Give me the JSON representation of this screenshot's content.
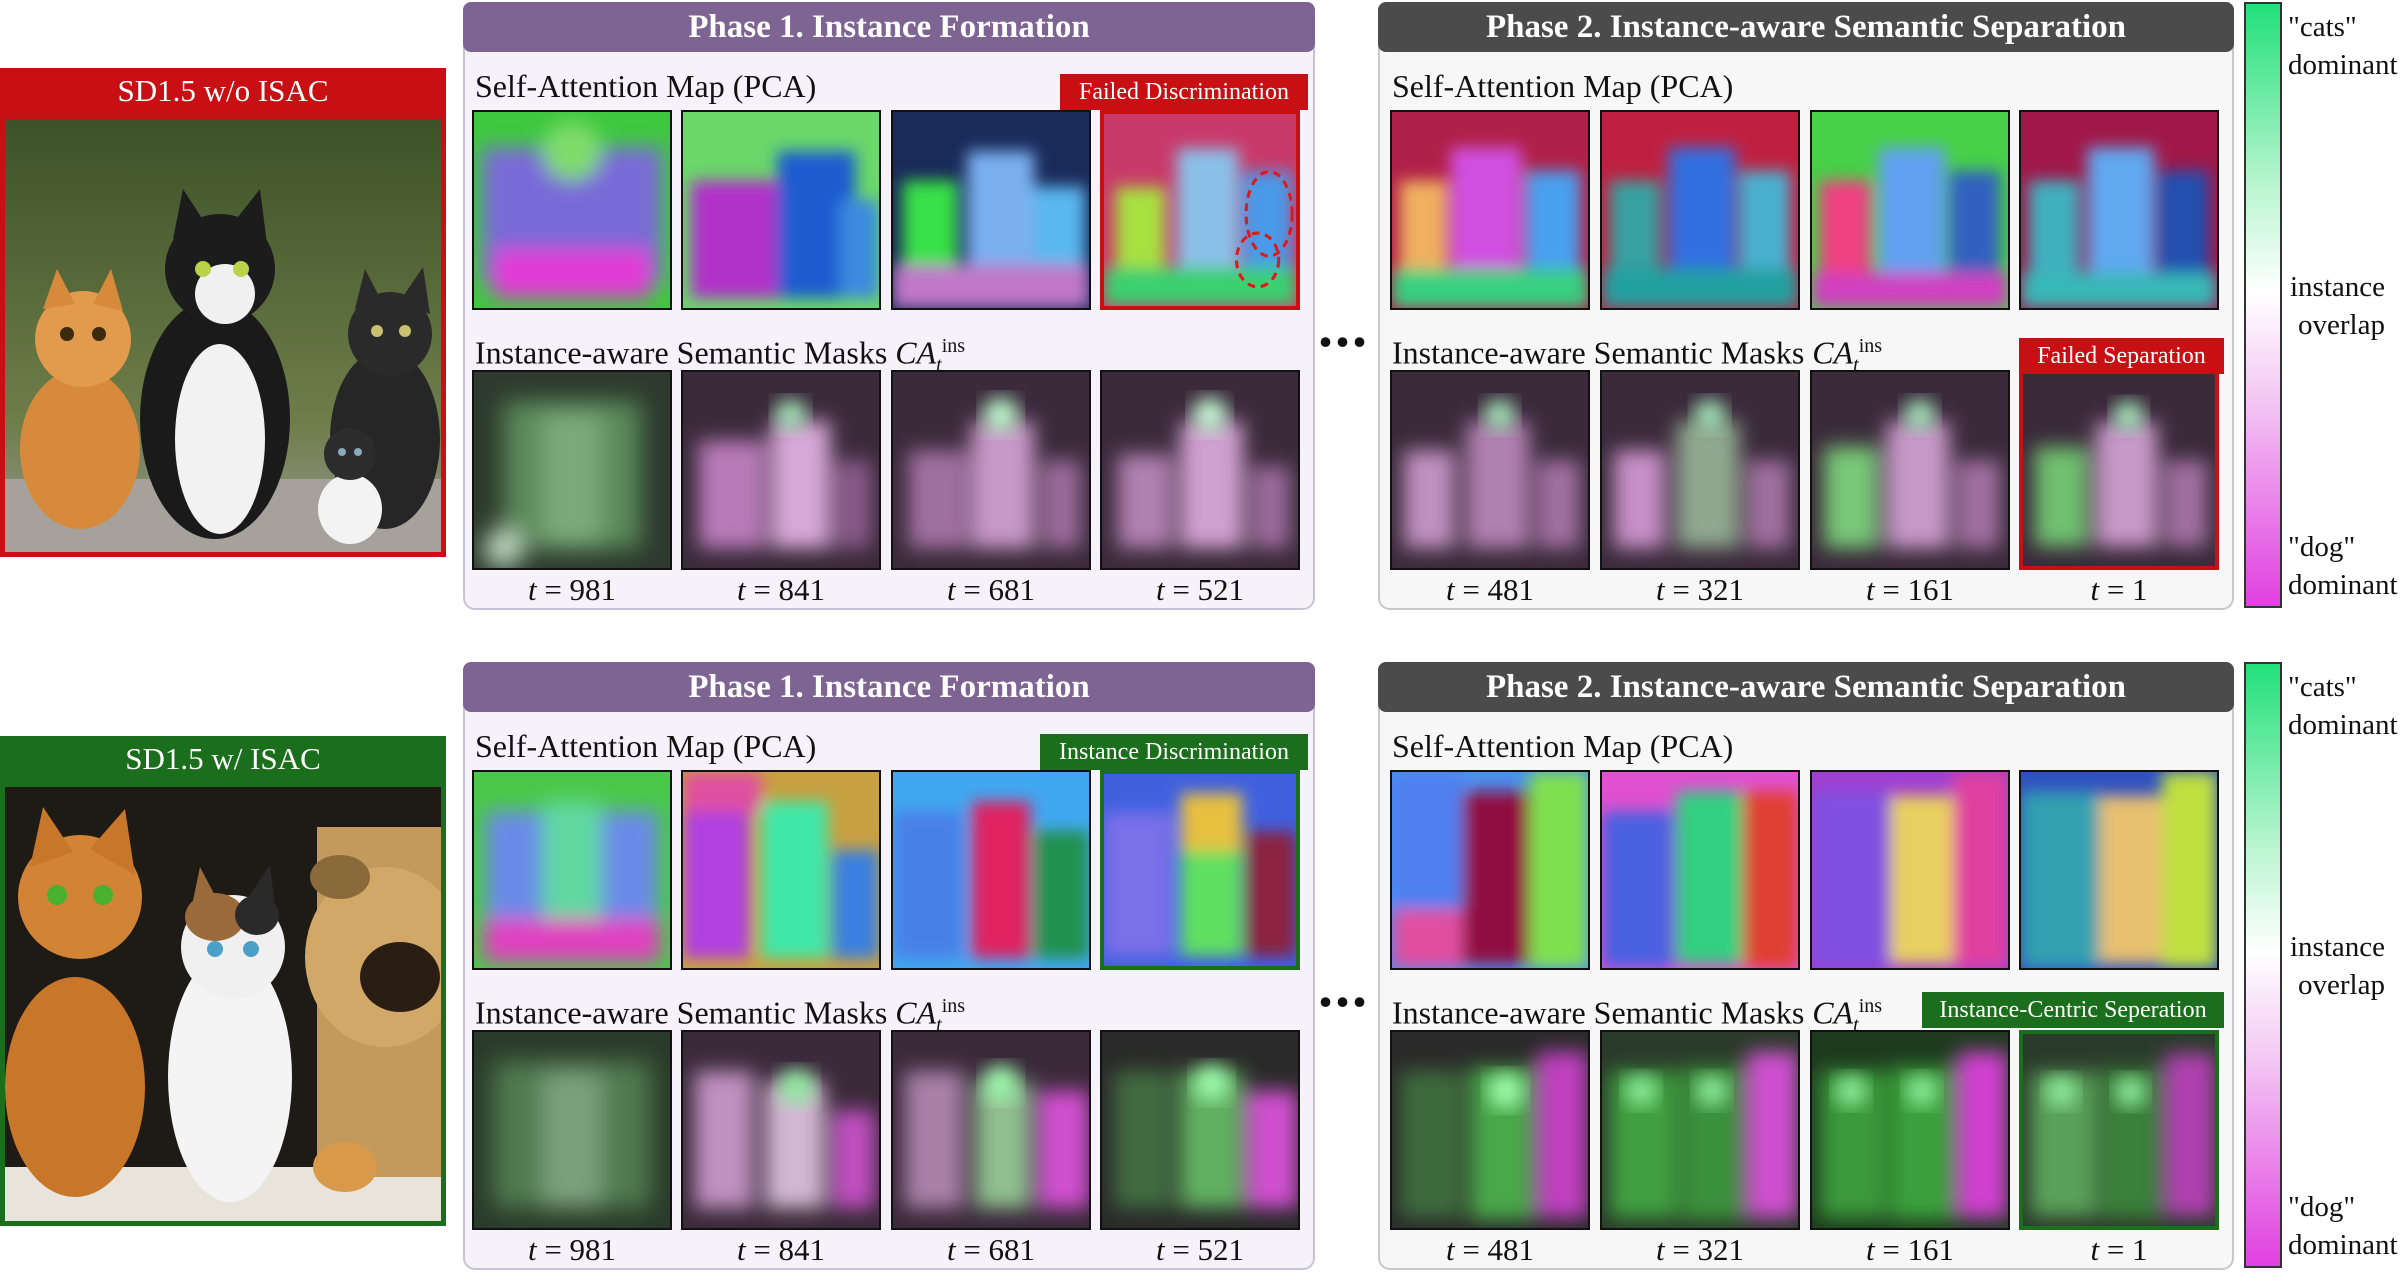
{
  "rows": [
    {
      "label": "SD1.5 w/o ISAC",
      "label_color": "#c80f14",
      "phase1_title": "Phase 1. Instance Formation",
      "phase2_title": "Phase 2. Instance-aware Semantic Separation",
      "sa_label": "Self-Attention Map (PCA)",
      "ca_label": "Instance-aware Semantic Masks",
      "phase1_tag": "Failed Discrimination",
      "phase2_tag": "Failed Separation",
      "photo_subject": "three cats sitting outdoors"
    },
    {
      "label": "SD1.5 w/ ISAC",
      "label_color": "#1b6e1b",
      "phase1_title": "Phase 1. Instance Formation",
      "phase2_title": "Phase 2. Instance-aware Semantic Separation",
      "sa_label": "Self-Attention Map (PCA)",
      "ca_label": "Instance-aware Semantic Masks",
      "phase1_tag": "Instance Discrimination",
      "phase2_tag": "Instance-Centric Seperation",
      "photo_subject": "two cats and a pug dog"
    }
  ],
  "ca_math": {
    "base": "CA",
    "sub": "t",
    "sup": "ins"
  },
  "timesteps_phase1": [
    "981",
    "841",
    "681",
    "521"
  ],
  "timesteps_phase2": [
    "481",
    "321",
    "161",
    "1"
  ],
  "t_symbol": "t",
  "t_equals": "=",
  "ellipsis": "...",
  "colorbar": {
    "top": "\"cats\"",
    "top2": "dominant",
    "mid": "instance",
    "mid2": "overlap",
    "bottom": "\"dog\"",
    "bottom2": "dominant",
    "top_color": "#22e07a",
    "mid_color": "#ffffff",
    "bottom_color": "#e040e0"
  },
  "colors": {
    "red": "#c80f14",
    "green": "#1b6e1b",
    "phase1": "#7d6493",
    "phase2": "#4b4b4b"
  }
}
